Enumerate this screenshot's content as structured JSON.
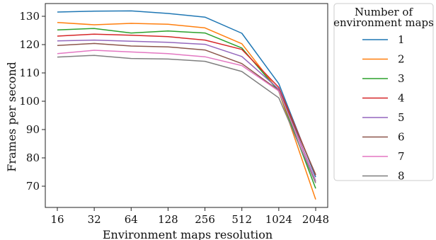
{
  "chart_data": {
    "type": "line",
    "xlabel": "Environment maps resolution",
    "ylabel": "Frames per second",
    "categories": [
      "16",
      "32",
      "64",
      "128",
      "256",
      "512",
      "1024",
      "2048"
    ],
    "ylim": [
      62.5,
      134.5
    ],
    "yticks": [
      70,
      80,
      90,
      100,
      110,
      120,
      130
    ],
    "grid": false,
    "legend": {
      "title_line1": "Number of",
      "title_line2": "environment maps",
      "placement": "outside-right"
    },
    "series": [
      {
        "name": "1",
        "color": "#1f77b4",
        "values": [
          131.5,
          131.8,
          131.9,
          131.0,
          129.7,
          124.0,
          106.2,
          73.2
        ]
      },
      {
        "name": "2",
        "color": "#ff7f0e",
        "values": [
          127.8,
          127.0,
          127.5,
          127.2,
          125.9,
          120.3,
          103.5,
          65.3
        ]
      },
      {
        "name": "3",
        "color": "#2ca02c",
        "values": [
          125.2,
          125.7,
          124.1,
          124.8,
          124.1,
          118.8,
          103.5,
          69.2
        ]
      },
      {
        "name": "4",
        "color": "#d62728",
        "values": [
          123.0,
          123.7,
          123.3,
          122.8,
          121.6,
          118.3,
          104.9,
          73.9
        ]
      },
      {
        "name": "5",
        "color": "#9467bd",
        "values": [
          121.3,
          121.6,
          121.2,
          120.8,
          120.1,
          115.8,
          104.3,
          71.9
        ]
      },
      {
        "name": "6",
        "color": "#8c564b",
        "values": [
          119.7,
          120.4,
          119.5,
          119.2,
          118.1,
          113.3,
          103.8,
          74.1
        ]
      },
      {
        "name": "7",
        "color": "#e377c2",
        "values": [
          116.8,
          118.0,
          117.4,
          116.8,
          115.7,
          112.6,
          103.6,
          71.5
        ]
      },
      {
        "name": "8",
        "color": "#7f7f7f",
        "values": [
          115.6,
          116.2,
          115.1,
          114.9,
          114.1,
          110.5,
          101.2,
          71.1
        ]
      }
    ]
  }
}
